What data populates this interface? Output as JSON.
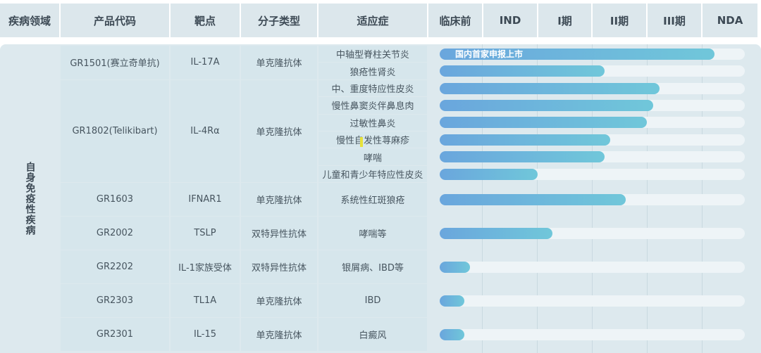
{
  "header": {
    "columns": [
      "疾病领域",
      "产品代码",
      "靶点",
      "分子类型",
      "适应症",
      "临床前",
      "IND",
      "I期",
      "II期",
      "III期",
      "NDA"
    ]
  },
  "category": "自身免疫性疾病",
  "products": [
    {
      "code": "GR1501(赛立奇单抗)",
      "target": "IL-17A",
      "type": "单克隆抗体",
      "indications": [
        {
          "name": "中轴型脊柱关节炎",
          "progress": 0.9,
          "label": "国内首家申报上市"
        },
        {
          "name": "狼疮性肾炎",
          "progress": 0.54
        }
      ]
    },
    {
      "code": "GR1802(Telikibart)",
      "target": "IL-4Rα",
      "type": "单克隆抗体",
      "indications": [
        {
          "name": "中、重度特应性皮炎",
          "progress": 0.72
        },
        {
          "name": "慢性鼻窦炎伴鼻息肉",
          "progress": 0.7
        },
        {
          "name": "过敏性鼻炎",
          "progress": 0.68
        },
        {
          "name": "慢性自发性荨麻疹",
          "progress": 0.56
        },
        {
          "name": "哮喘",
          "progress": 0.54
        },
        {
          "name": "儿童和青少年特应性皮炎",
          "progress": 0.32
        }
      ]
    },
    {
      "code": "GR1603",
      "target": "IFNAR1",
      "type": "单克隆抗体",
      "indications": [
        {
          "name": "系统性红斑狼疮",
          "progress": 0.61
        }
      ]
    },
    {
      "code": "GR2002",
      "target": "TSLP",
      "type": "双特异性抗体",
      "indications": [
        {
          "name": "哮喘等",
          "progress": 0.37
        }
      ]
    },
    {
      "code": "GR2202",
      "target": "IL-1家族受体",
      "type": "双特异性抗体",
      "indications": [
        {
          "name": "银屑病、IBD等",
          "progress": 0.1
        }
      ]
    },
    {
      "code": "GR2303",
      "target": "TL1A",
      "type": "单克隆抗体",
      "indications": [
        {
          "name": "IBD",
          "progress": 0.08
        }
      ]
    },
    {
      "code": "GR2301",
      "target": "IL-15",
      "type": "单克隆抗体",
      "indications": [
        {
          "name": "白癜风",
          "progress": 0.08
        }
      ]
    }
  ],
  "colors": {
    "header_bg": "#dce7ec",
    "panel_bg": "#dde9ee",
    "bar_start": "#6aa6dd",
    "bar_end": "#70c7da",
    "track": "#eef4f7"
  }
}
